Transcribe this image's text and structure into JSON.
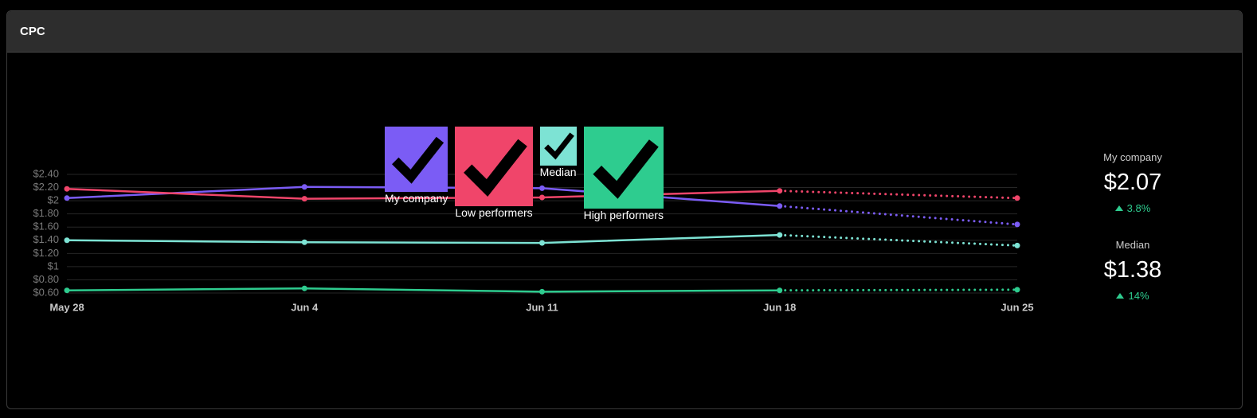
{
  "header": {
    "title": "CPC"
  },
  "chart_data": {
    "type": "line",
    "categories": [
      "May 28",
      "Jun 4",
      "Jun 11",
      "Jun 18",
      "Jun 25"
    ],
    "series": [
      {
        "name": "My company",
        "color": "#7b5cf5",
        "values": [
          2.04,
          2.21,
          2.19,
          1.92,
          1.64
        ]
      },
      {
        "name": "Low performers",
        "color": "#f0456a",
        "values": [
          2.18,
          2.03,
          2.05,
          2.15,
          2.04
        ]
      },
      {
        "name": "Median",
        "color": "#7de3d4",
        "values": [
          1.4,
          1.37,
          1.36,
          1.48,
          1.32
        ]
      },
      {
        "name": "High performers",
        "color": "#2ecc8f",
        "values": [
          0.64,
          0.67,
          0.62,
          0.64,
          0.65
        ]
      }
    ],
    "ylim": [
      0.6,
      2.4
    ],
    "yticks": [
      {
        "value": 0.6,
        "label": "$0.60"
      },
      {
        "value": 0.8,
        "label": "$0.80"
      },
      {
        "value": 1,
        "label": "$1"
      },
      {
        "value": 1.2,
        "label": "$1.20"
      },
      {
        "value": 1.4,
        "label": "$1.40"
      },
      {
        "value": 1.6,
        "label": "$1.60"
      },
      {
        "value": 1.8,
        "label": "$1.80"
      },
      {
        "value": 2,
        "label": "$2"
      },
      {
        "value": 2.2,
        "label": "$2.20"
      },
      {
        "value": 2.4,
        "label": "$2.40"
      }
    ],
    "grid": true,
    "last_segment_style": "dotted"
  },
  "stats": [
    {
      "label": "My company",
      "value": "$2.07",
      "change": "3.8%"
    },
    {
      "label": "Median",
      "value": "$1.38",
      "change": "14%"
    }
  ]
}
